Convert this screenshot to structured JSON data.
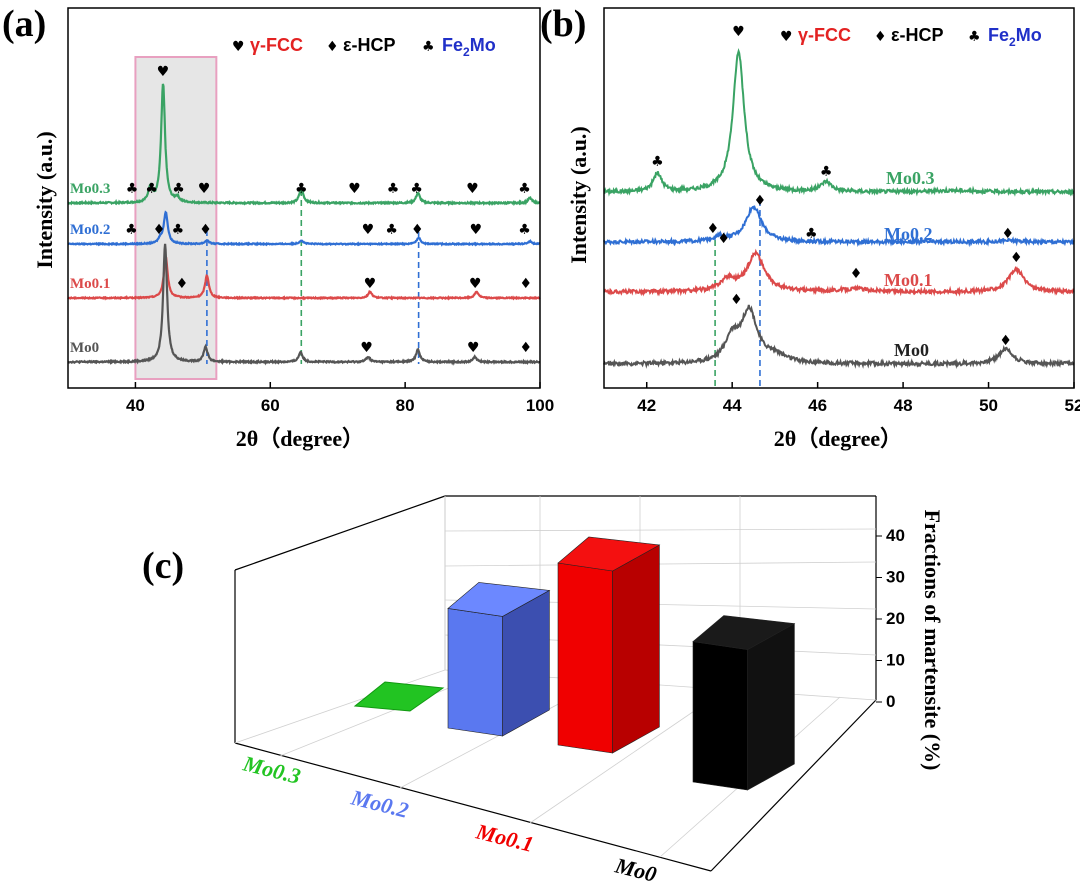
{
  "colors": {
    "mo03": "#3aa364",
    "mo02": "#2f6fd4",
    "mo01": "#dc4a4a",
    "mo0": "#555555",
    "fcc": "#e32222",
    "hcp": "#000000",
    "fe2mo": "#2030c8",
    "bar_mo03": "#22c422",
    "bar_mo02": "#5a78f0",
    "bar_mo01": "#f00000",
    "bar_mo0": "#000000"
  },
  "symbols": {
    "fcc": "♥",
    "hcp": "♦",
    "fe2mo": "♣"
  },
  "legend": {
    "fcc": "γ-FCC",
    "hcp": "ε-HCP",
    "fe2mo_main": "Fe",
    "fe2mo_sub": "2",
    "fe2mo_end": "Mo"
  },
  "chart_data": [
    {
      "panel": "(a)",
      "type": "line",
      "xlabel": "2θ（degree）",
      "ylabel": "Intensity (a.u.)",
      "xlim": [
        30,
        100
      ],
      "xticks": [
        "40",
        "60",
        "80",
        "100"
      ],
      "highlight_range": [
        40,
        52
      ],
      "series": [
        {
          "name": "Mo0.3",
          "color_key": "mo03",
          "peaks": [
            [
              42.2,
              0.12
            ],
            [
              44.1,
              0.95
            ],
            [
              46.2,
              0.04
            ],
            [
              64.6,
              0.12
            ],
            [
              81.9,
              0.08
            ],
            [
              98.5,
              0.04
            ]
          ]
        },
        {
          "name": "Mo0.2",
          "color_key": "mo02",
          "peaks": [
            [
              43.7,
              0.05
            ],
            [
              44.5,
              0.35
            ],
            [
              50.6,
              0.04
            ],
            [
              64.6,
              0.04
            ],
            [
              82.0,
              0.07
            ],
            [
              98.5,
              0.03
            ]
          ]
        },
        {
          "name": "Mo0.1",
          "color_key": "mo01",
          "peaks": [
            [
              44.5,
              0.45
            ],
            [
              50.6,
              0.25
            ],
            [
              74.8,
              0.07
            ],
            [
              90.6,
              0.07
            ]
          ]
        },
        {
          "name": "Mo0",
          "color_key": "mo0",
          "peaks": [
            [
              44.4,
              0.95
            ],
            [
              50.4,
              0.12
            ],
            [
              64.5,
              0.08
            ],
            [
              74.5,
              0.04
            ],
            [
              81.9,
              0.1
            ],
            [
              90.3,
              0.04
            ]
          ]
        }
      ],
      "reference_lines": [
        {
          "x": 50.6,
          "color_key": "mo02"
        },
        {
          "x": 64.6,
          "color_key": "mo03"
        },
        {
          "x": 82.0,
          "color_key": "mo02"
        }
      ],
      "markers": [
        {
          "series": "Mo0.3",
          "x": 39.5,
          "sym": "fe2mo"
        },
        {
          "series": "Mo0.3",
          "x": 42.4,
          "sym": "fe2mo"
        },
        {
          "series": "Mo0.3",
          "x": 44.1,
          "sym": "fcc"
        },
        {
          "series": "Mo0.3",
          "x": 46.4,
          "sym": "fe2mo"
        },
        {
          "series": "Mo0.3",
          "x": 50.2,
          "sym": "fcc"
        },
        {
          "series": "Mo0.3",
          "x": 64.6,
          "sym": "fe2mo"
        },
        {
          "series": "Mo0.3",
          "x": 72.5,
          "sym": "fcc"
        },
        {
          "series": "Mo0.3",
          "x": 78.2,
          "sym": "fe2mo"
        },
        {
          "series": "Mo0.3",
          "x": 81.7,
          "sym": "fe2mo"
        },
        {
          "series": "Mo0.3",
          "x": 90.0,
          "sym": "fcc"
        },
        {
          "series": "Mo0.3",
          "x": 97.7,
          "sym": "fe2mo"
        },
        {
          "series": "Mo0.2",
          "x": 39.4,
          "sym": "fe2mo"
        },
        {
          "series": "Mo0.2",
          "x": 43.5,
          "sym": "hcp"
        },
        {
          "series": "Mo0.2",
          "x": 46.3,
          "sym": "fe2mo"
        },
        {
          "series": "Mo0.2",
          "x": 50.4,
          "sym": "hcp"
        },
        {
          "series": "Mo0.2",
          "x": 74.5,
          "sym": "fcc"
        },
        {
          "series": "Mo0.2",
          "x": 78.0,
          "sym": "fe2mo"
        },
        {
          "series": "Mo0.2",
          "x": 81.8,
          "sym": "hcp"
        },
        {
          "series": "Mo0.2",
          "x": 90.5,
          "sym": "fcc"
        },
        {
          "series": "Mo0.2",
          "x": 97.7,
          "sym": "fe2mo"
        },
        {
          "series": "Mo0.1",
          "x": 46.9,
          "sym": "hcp"
        },
        {
          "series": "Mo0.1",
          "x": 74.8,
          "sym": "fcc"
        },
        {
          "series": "Mo0.1",
          "x": 90.4,
          "sym": "fcc"
        },
        {
          "series": "Mo0.1",
          "x": 97.9,
          "sym": "hcp"
        },
        {
          "series": "Mo0",
          "x": 74.3,
          "sym": "fcc"
        },
        {
          "series": "Mo0",
          "x": 90.1,
          "sym": "fcc"
        },
        {
          "series": "Mo0",
          "x": 97.9,
          "sym": "hcp"
        }
      ]
    },
    {
      "panel": "(b)",
      "type": "line",
      "xlabel": "2θ（degree）",
      "ylabel": "Intensity (a.u.)",
      "xlim": [
        41,
        52
      ],
      "xticks": [
        "42",
        "44",
        "46",
        "48",
        "50",
        "52"
      ],
      "series": [
        {
          "name": "Mo0.3",
          "color_key": "mo03",
          "peaks": [
            [
              42.25,
              0.13,
              0.12
            ],
            [
              44.15,
              1.0,
              0.16
            ],
            [
              46.2,
              0.07,
              0.15
            ],
            [
              49.2,
              0.01,
              0.6
            ]
          ]
        },
        {
          "name": "Mo0.2",
          "color_key": "mo02",
          "peaks": [
            [
              43.7,
              0.03,
              0.2
            ],
            [
              44.5,
              0.25,
              0.22
            ],
            [
              50.5,
              0.01,
              0.3
            ]
          ]
        },
        {
          "name": "Mo0.1",
          "color_key": "mo01",
          "peaks": [
            [
              43.9,
              0.08,
              0.22
            ],
            [
              44.55,
              0.27,
              0.24
            ],
            [
              46.9,
              0.02,
              0.4
            ],
            [
              50.65,
              0.16,
              0.22
            ]
          ]
        },
        {
          "name": "Mo0",
          "color_key": "mo0",
          "peaks": [
            [
              44.0,
              0.16,
              0.2
            ],
            [
              44.4,
              0.34,
              0.22
            ],
            [
              45.0,
              0.05,
              0.3
            ],
            [
              50.4,
              0.1,
              0.2
            ]
          ]
        }
      ],
      "reference_lines": [
        {
          "x": 43.6,
          "color_key": "mo03"
        },
        {
          "x": 44.65,
          "color_key": "mo02"
        }
      ],
      "markers": [
        {
          "series": "Mo0.3",
          "x": 42.25,
          "sym": "fe2mo"
        },
        {
          "series": "Mo0.3",
          "x": 44.15,
          "sym": "fcc"
        },
        {
          "series": "Mo0.3",
          "x": 46.2,
          "sym": "fe2mo"
        },
        {
          "series": "Mo0.2",
          "x": 43.55,
          "sym": "hcp"
        },
        {
          "series": "Mo0.2",
          "x": 44.65,
          "sym": "hcp"
        },
        {
          "series": "Mo0.2",
          "x": 45.85,
          "sym": "fe2mo"
        },
        {
          "series": "Mo0.2",
          "x": 50.45,
          "sym": "hcp"
        },
        {
          "series": "Mo0.1",
          "x": 43.8,
          "sym": "hcp"
        },
        {
          "series": "Mo0.1",
          "x": 46.9,
          "sym": "hcp"
        },
        {
          "series": "Mo0.1",
          "x": 50.65,
          "sym": "hcp"
        },
        {
          "series": "Mo0",
          "x": 44.1,
          "sym": "hcp"
        },
        {
          "series": "Mo0",
          "x": 50.4,
          "sym": "hcp"
        }
      ]
    },
    {
      "panel": "(c)",
      "type": "bar",
      "title": "",
      "ylabel": "Fractions of martensite (%)",
      "ylim": [
        0,
        40
      ],
      "yticks": [
        "0",
        "10",
        "20",
        "30",
        "40"
      ],
      "categories": [
        "Mo0.3",
        "Mo0.2",
        "Mo0.1",
        "Mo0"
      ],
      "values": [
        0,
        23,
        35,
        27
      ],
      "color_keys": [
        "bar_mo03",
        "bar_mo02",
        "bar_mo01",
        "bar_mo0"
      ]
    }
  ]
}
